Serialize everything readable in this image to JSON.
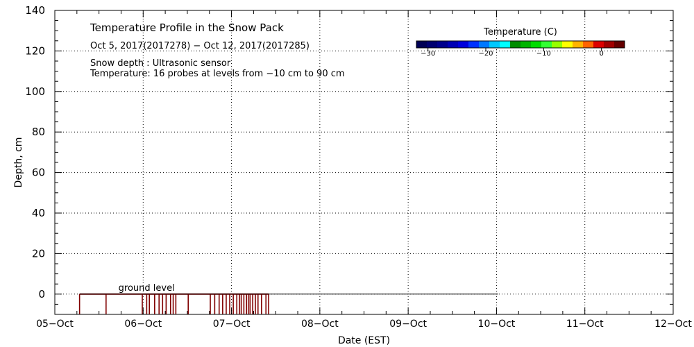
{
  "chart_data": {
    "type": "heatmap",
    "title": "Temperature Profile in the Snow Pack",
    "subtitle": "Oct  5, 2017(2017278) − Oct 12, 2017(2017285)",
    "notes": [
      "Snow depth : Ultrasonic sensor",
      "Temperature: 16 probes at levels from −10 cm to 90 cm"
    ],
    "xlabel": "Date (EST)",
    "ylabel": "Depth, cm",
    "x_categories": [
      "05−Oct",
      "06−Oct",
      "07−Oct",
      "08−Oct",
      "09−Oct",
      "10−Oct",
      "11−Oct",
      "12−Oct"
    ],
    "xlim": [
      0,
      7
    ],
    "ylim": [
      -10,
      140
    ],
    "y_ticks": [
      0,
      20,
      40,
      60,
      80,
      100,
      120,
      140
    ],
    "y_ticklabels": [
      "0",
      "20",
      "40",
      "60",
      "80",
      "100",
      "120",
      "140"
    ],
    "grid": true,
    "ground_level_label": "ground level",
    "ground_level_value": 0,
    "ground_line_end_day": 5.02,
    "snow_depth_bars_days": [
      0.28,
      0.58,
      0.99,
      1.04,
      1.07,
      1.13,
      1.18,
      1.22,
      1.26,
      1.31,
      1.34,
      1.37,
      1.51,
      1.76,
      1.81,
      1.86,
      1.9,
      1.94,
      1.98,
      2.02,
      2.06,
      2.09,
      2.11,
      2.14,
      2.17,
      2.19,
      2.21,
      2.24,
      2.27,
      2.3,
      2.34,
      2.39,
      2.42
    ],
    "snow_depth_bar_color": "#800000",
    "colorbar": {
      "title": "Temperature (C)",
      "min": -32,
      "max": 4,
      "tick_values": [
        -30,
        -20,
        -10,
        0
      ],
      "tick_labels": [
        "−30",
        "−20",
        "−10",
        "0"
      ],
      "colors": [
        "#000055",
        "#000070",
        "#00008c",
        "#0000b4",
        "#0000dc",
        "#0032ff",
        "#0078ff",
        "#00c8ff",
        "#00ffff",
        "#008c00",
        "#00b400",
        "#00dc00",
        "#32ff32",
        "#96ff00",
        "#ffff00",
        "#ffb400",
        "#ff6400",
        "#dc0000",
        "#a00000",
        "#640000"
      ]
    }
  }
}
